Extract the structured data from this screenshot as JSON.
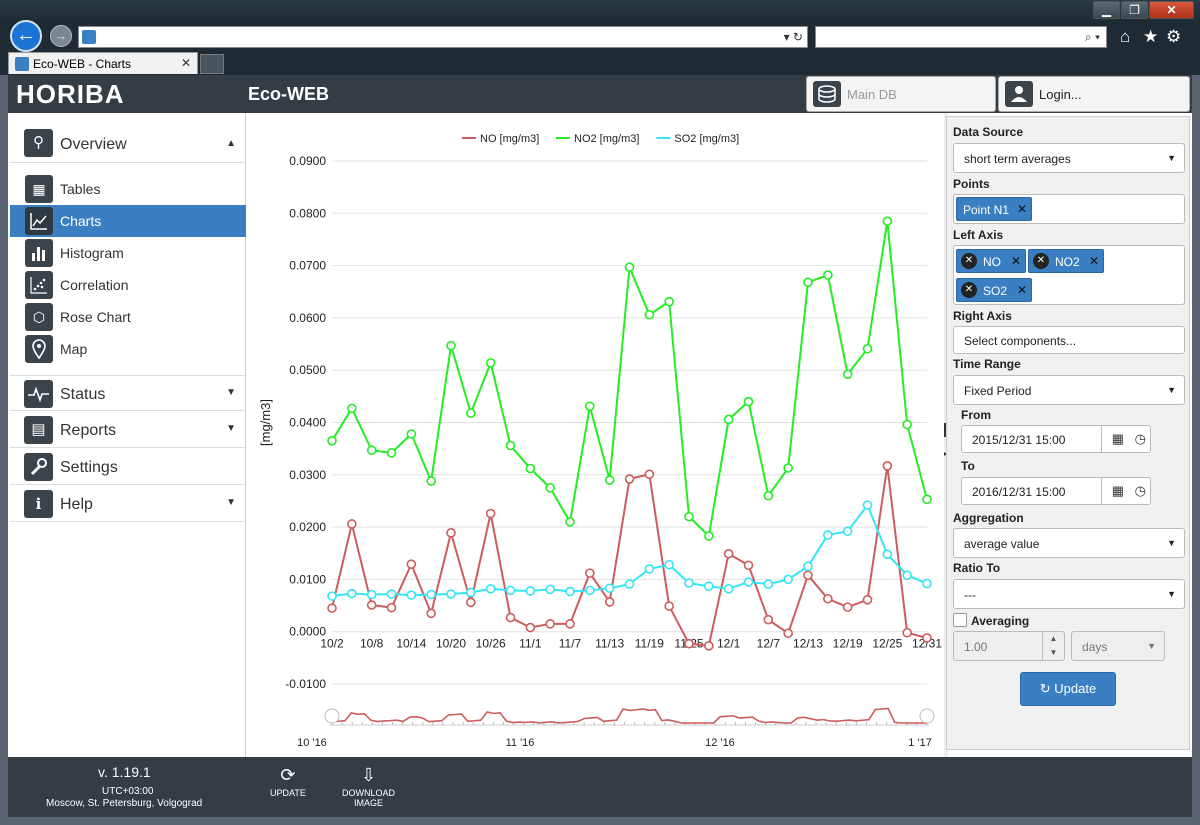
{
  "browser": {
    "tab_title": "Eco-WEB - Charts",
    "back_icon": "←",
    "forward_icon": "→",
    "addr_controls": "▾ ↻",
    "search_controls": "⌕ ▾",
    "min": "▁",
    "max": "❐",
    "close": "✕",
    "home": "⌂",
    "star": "★",
    "gear": "⚙",
    "tab_close": "✕"
  },
  "app": {
    "logo": "HORIBA",
    "title": "Eco-WEB",
    "db_label": "Main DB",
    "login_label": "Login..."
  },
  "sidebar": {
    "overview": "Overview",
    "items": [
      "Tables",
      "Charts",
      "Histogram",
      "Correlation",
      "Rose Chart",
      "Map"
    ],
    "status": "Status",
    "reports": "Reports",
    "settings": "Settings",
    "help": "Help",
    "caret_up": "▲",
    "caret_down": "▼"
  },
  "panel": {
    "data_source_label": "Data Source",
    "data_source_value": "short term averages",
    "points_label": "Points",
    "point_chip": "Point N1",
    "left_axis_label": "Left Axis",
    "left_axis_chips": [
      "NO",
      "NO2",
      "SO2"
    ],
    "right_axis_label": "Right Axis",
    "right_axis_placeholder": "Select components...",
    "time_range_label": "Time Range",
    "time_range_value": "Fixed Period",
    "from_label": "From",
    "from_value": "2015/12/31 15:00",
    "to_label": "To",
    "to_value": "2016/12/31 15:00",
    "aggregation_label": "Aggregation",
    "aggregation_value": "average value",
    "ratio_label": "Ratio To",
    "ratio_value": "---",
    "averaging_label": "Averaging",
    "averaging_value": "1.00",
    "averaging_unit": "days",
    "update_button": "Update"
  },
  "footer": {
    "version": "v. 1.19.1",
    "timezone": "UTC+03:00",
    "city": "Moscow, St. Petersburg, Volgograd",
    "update": "UPDATE",
    "download": "DOWNLOAD",
    "download2": "IMAGE"
  },
  "chart_data": {
    "type": "line",
    "title": "",
    "ylabel": "[mg/m3]",
    "xlabel": "",
    "ylim": [
      -0.01,
      0.09
    ],
    "yticks": [
      "0.0900",
      "0.0800",
      "0.0700",
      "0.0600",
      "0.0500",
      "0.0400",
      "0.0300",
      "0.0200",
      "0.0100",
      "0.0000",
      "-0.0100"
    ],
    "x_tick_labels": [
      "10/2",
      "10/8",
      "10/14",
      "10/20",
      "10/26",
      "11/1",
      "11/7",
      "11/13",
      "11/19",
      "11/25",
      "12/1",
      "12/7",
      "12/13",
      "12/19",
      "12/25",
      "12/31"
    ],
    "navigator_labels": [
      "10 '16",
      "11 '16",
      "12 '16",
      "1 '17"
    ],
    "series": [
      {
        "name": "NO [mg/m3]",
        "color": "#cd5c5c",
        "values": [
          0.0045,
          0.0206,
          0.0051,
          0.0046,
          0.0129,
          0.0035,
          0.0189,
          0.0056,
          0.0226,
          0.0027,
          0.0008,
          0.0015,
          0.0015,
          0.0112,
          0.0057,
          0.0292,
          0.0301,
          0.0049,
          -0.0023,
          -0.0027,
          0.0149,
          0.0127,
          0.0023,
          -0.0003,
          0.0108,
          0.0063,
          0.0047,
          0.0061,
          0.0317,
          -0.0002,
          -0.0012
        ]
      },
      {
        "name": "NO2 [mg/m3]",
        "color": "#22ee22",
        "values": [
          0.0365,
          0.0427,
          0.0347,
          0.0342,
          0.0378,
          0.0288,
          0.0547,
          0.0418,
          0.0514,
          0.0356,
          0.0312,
          0.0275,
          0.021,
          0.0431,
          0.029,
          0.0697,
          0.0606,
          0.0631,
          0.022,
          0.0183,
          0.0406,
          0.044,
          0.026,
          0.0313,
          0.0668,
          0.0682,
          0.0492,
          0.0541,
          0.0785,
          0.0396,
          0.0253
        ]
      },
      {
        "name": "SO2 [mg/m3]",
        "color": "#33e6f5",
        "values": [
          0.0068,
          0.0073,
          0.0071,
          0.0072,
          0.007,
          0.0071,
          0.0072,
          0.0075,
          0.0082,
          0.0079,
          0.0078,
          0.0081,
          0.0077,
          0.0079,
          0.0083,
          0.0091,
          0.012,
          0.0128,
          0.0093,
          0.0087,
          0.0082,
          0.0095,
          0.0091,
          0.01,
          0.0125,
          0.0185,
          0.0192,
          0.0242,
          0.0148,
          0.0108,
          0.0092
        ]
      }
    ]
  }
}
